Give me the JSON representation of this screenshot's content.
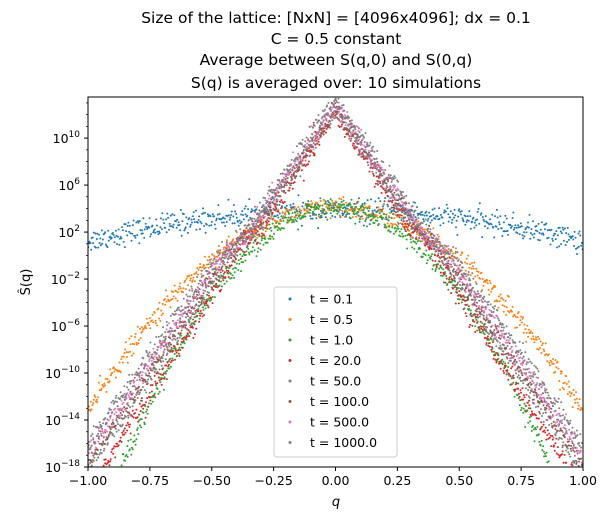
{
  "chart_data": {
    "type": "scatter",
    "title_lines": [
      "Size of the lattice: [NxN] = [4096x4096]; dx = 0.1",
      "C = 0.5 constant",
      "Average between S(q,0) and S(0,q)",
      "S(q) is averaged over: 10 simulations"
    ],
    "xlabel": "q",
    "ylabel": "Ŝ(q)",
    "xlim": [
      -1.0,
      1.0
    ],
    "ylim_log10": [
      -18,
      13.5
    ],
    "yscale": "log",
    "grid": false,
    "legend_position": "lower center",
    "xticks": [
      {
        "value": -1.0,
        "label": "−1.00"
      },
      {
        "value": -0.75,
        "label": "−0.75"
      },
      {
        "value": -0.5,
        "label": "−0.50"
      },
      {
        "value": -0.25,
        "label": "−0.25"
      },
      {
        "value": 0.0,
        "label": "0.00"
      },
      {
        "value": 0.25,
        "label": "0.25"
      },
      {
        "value": 0.5,
        "label": "0.50"
      },
      {
        "value": 0.75,
        "label": "0.75"
      },
      {
        "value": 1.0,
        "label": "1.00"
      }
    ],
    "yticks": [
      {
        "exp": 10,
        "base": "10",
        "sup": "10"
      },
      {
        "exp": 6,
        "base": "10",
        "sup": "6"
      },
      {
        "exp": 2,
        "base": "10",
        "sup": "2"
      },
      {
        "exp": -2,
        "base": "10",
        "sup": "−2"
      },
      {
        "exp": -6,
        "base": "10",
        "sup": "−6"
      },
      {
        "exp": -10,
        "base": "10",
        "sup": "−10"
      },
      {
        "exp": -14,
        "base": "10",
        "sup": "−14"
      },
      {
        "exp": -18,
        "base": "10",
        "sup": "−18"
      }
    ],
    "series": [
      {
        "name": "t = 0.1",
        "color": "#1f77b4",
        "shape": "gaussian",
        "peak_log10": 3.8,
        "sigma": 0.29,
        "noise": 0.5
      },
      {
        "name": "t = 0.5",
        "color": "#ff7f0e",
        "shape": "gaussian",
        "peak_log10": 4.0,
        "sigma": 0.112,
        "noise": 0.45
      },
      {
        "name": "t = 1.0",
        "color": "#2ca02c",
        "shape": "gaussian",
        "peak_log10": 4.0,
        "sigma": 0.086,
        "noise": 0.45
      },
      {
        "name": "t = 20.0",
        "color": "#d62728",
        "shape": "cusp",
        "peak_log10": 12.2,
        "shoulder_log10": 4.0,
        "slope": 33.5,
        "noise": 0.45
      },
      {
        "name": "t = 50.0",
        "color": "#7f7f7f",
        "shape": "cusp",
        "peak_log10": 12.4,
        "shoulder_log10": 4.0,
        "slope": 32.0,
        "noise": 0.45
      },
      {
        "name": "t = 100.0",
        "color": "#8c564b",
        "shape": "cusp",
        "peak_log10": 12.6,
        "shoulder_log10": 4.0,
        "slope": 31.5,
        "noise": 0.45
      },
      {
        "name": "t = 500.0",
        "color": "#e377c2",
        "shape": "cusp",
        "peak_log10": 12.9,
        "shoulder_log10": 4.0,
        "slope": 31.0,
        "noise": 0.45
      },
      {
        "name": "t = 1000.0",
        "color": "#7f7f7f",
        "shape": "cusp",
        "peak_log10": 13.2,
        "shoulder_log10": 4.0,
        "slope": 30.5,
        "noise": 0.45
      }
    ]
  }
}
